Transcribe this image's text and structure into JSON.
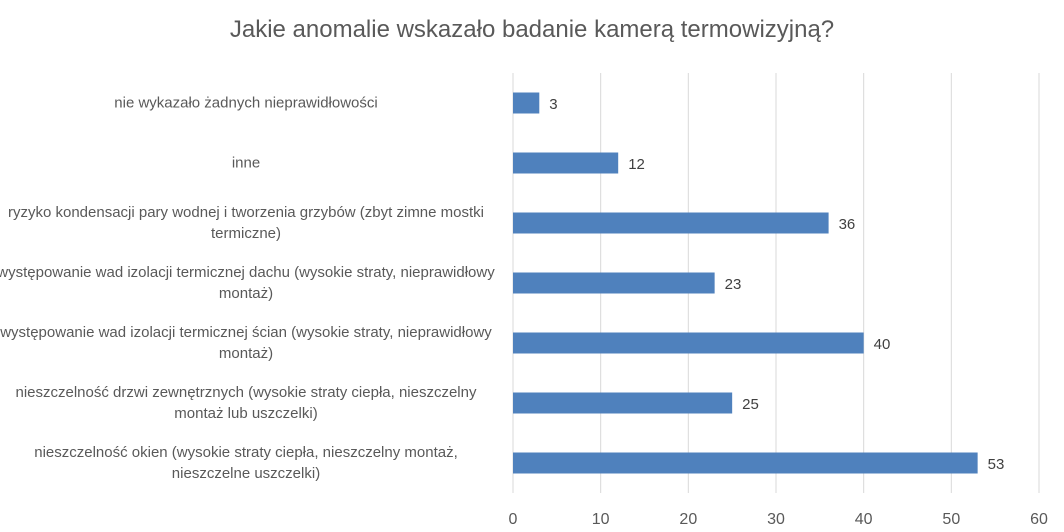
{
  "chart_data": {
    "type": "bar",
    "orientation": "horizontal",
    "title": "Jakie anomalie wskazało badanie kamerą termowizyjną?",
    "categories": [
      "nie wykazało żadnych nieprawidłowości",
      "inne",
      "ryzyko kondensacji pary wodnej i tworzenia grzybów (zbyt zimne mostki termiczne)",
      "występowanie wad izolacji termicznej dachu (wysokie straty, nieprawidłowy montaż)",
      "występowanie wad izolacji termicznej ścian (wysokie straty, nieprawidłowy montaż)",
      "nieszczelność drzwi zewnętrznych (wysokie straty ciepła, nieszczelny montaż lub uszczelki)",
      "nieszczelność okien (wysokie straty ciepła, nieszczelny montaż, nieszczelne uszczelki)"
    ],
    "values": [
      3,
      12,
      36,
      23,
      40,
      25,
      53
    ],
    "xlim": [
      0,
      60
    ],
    "ticks": [
      "0",
      "10",
      "20",
      "30",
      "40",
      "50",
      "60"
    ],
    "grid": true,
    "bar_color": "#4F81BD",
    "xlabel": "",
    "ylabel": ""
  }
}
